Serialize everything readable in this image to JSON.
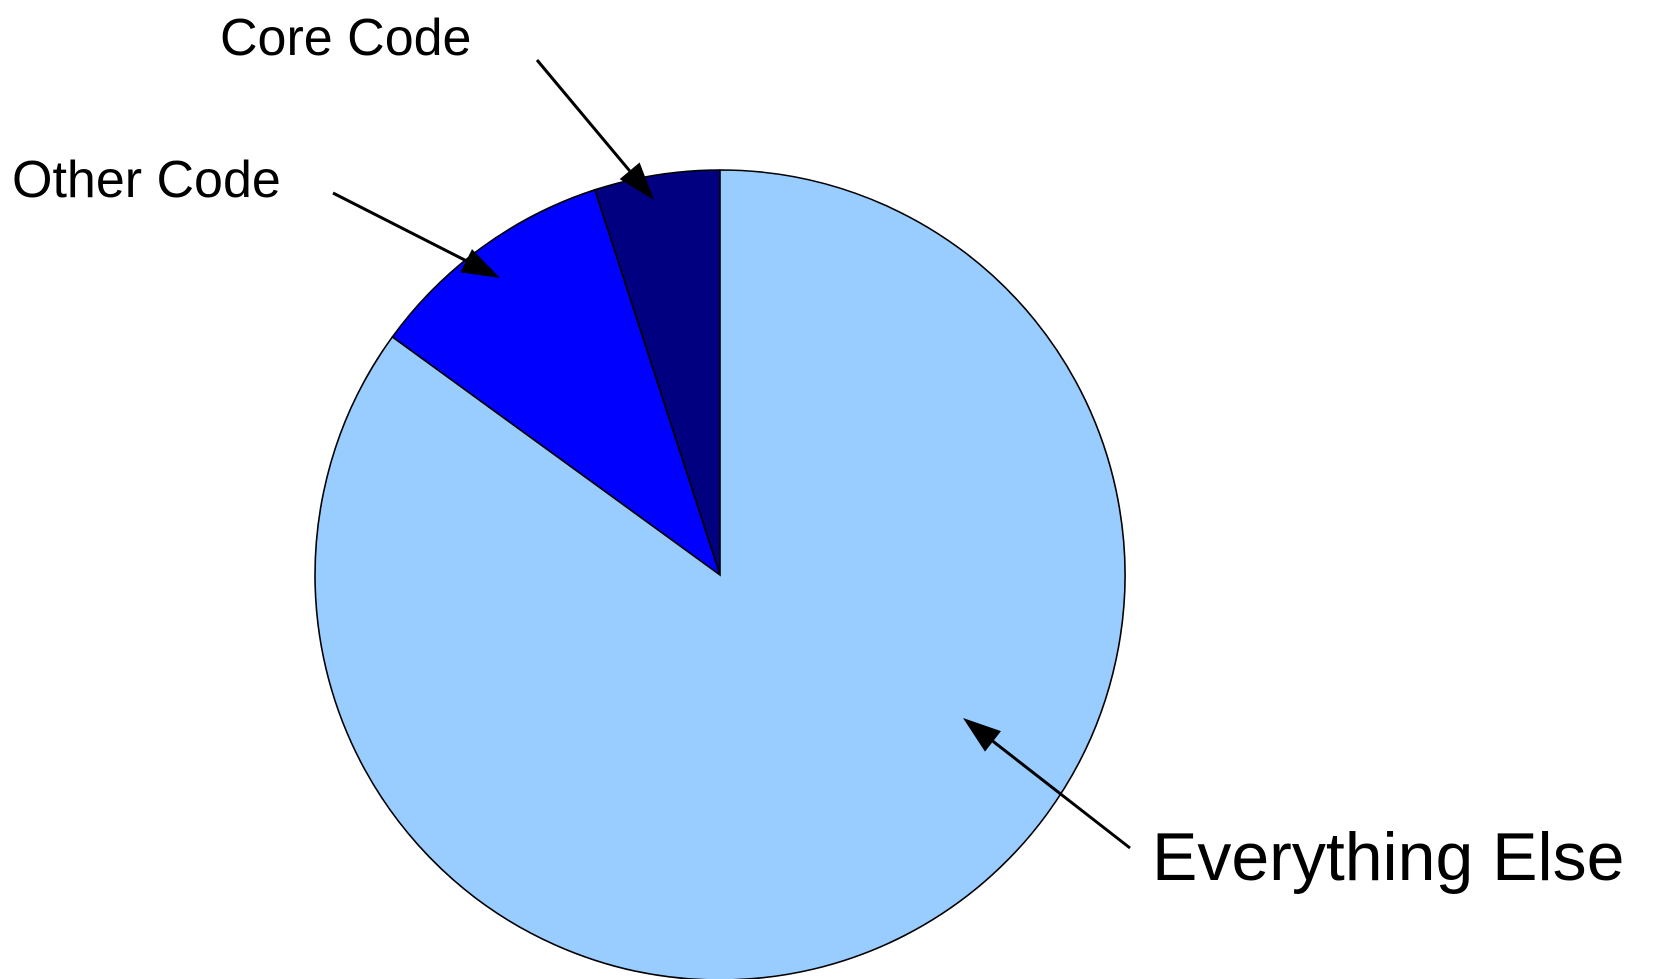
{
  "chart_data": {
    "type": "pie",
    "title": "",
    "start_angle": "12 o'clock",
    "direction": "counter-clockwise",
    "slices": [
      {
        "label": "Core Code",
        "value": 5,
        "color": "#000080"
      },
      {
        "label": "Other Code",
        "value": 10,
        "color": "#0000FF"
      },
      {
        "label": "Everything Else",
        "value": 85,
        "color": "#99CCFF"
      }
    ],
    "legend": "none",
    "outline_color": "#000000"
  }
}
